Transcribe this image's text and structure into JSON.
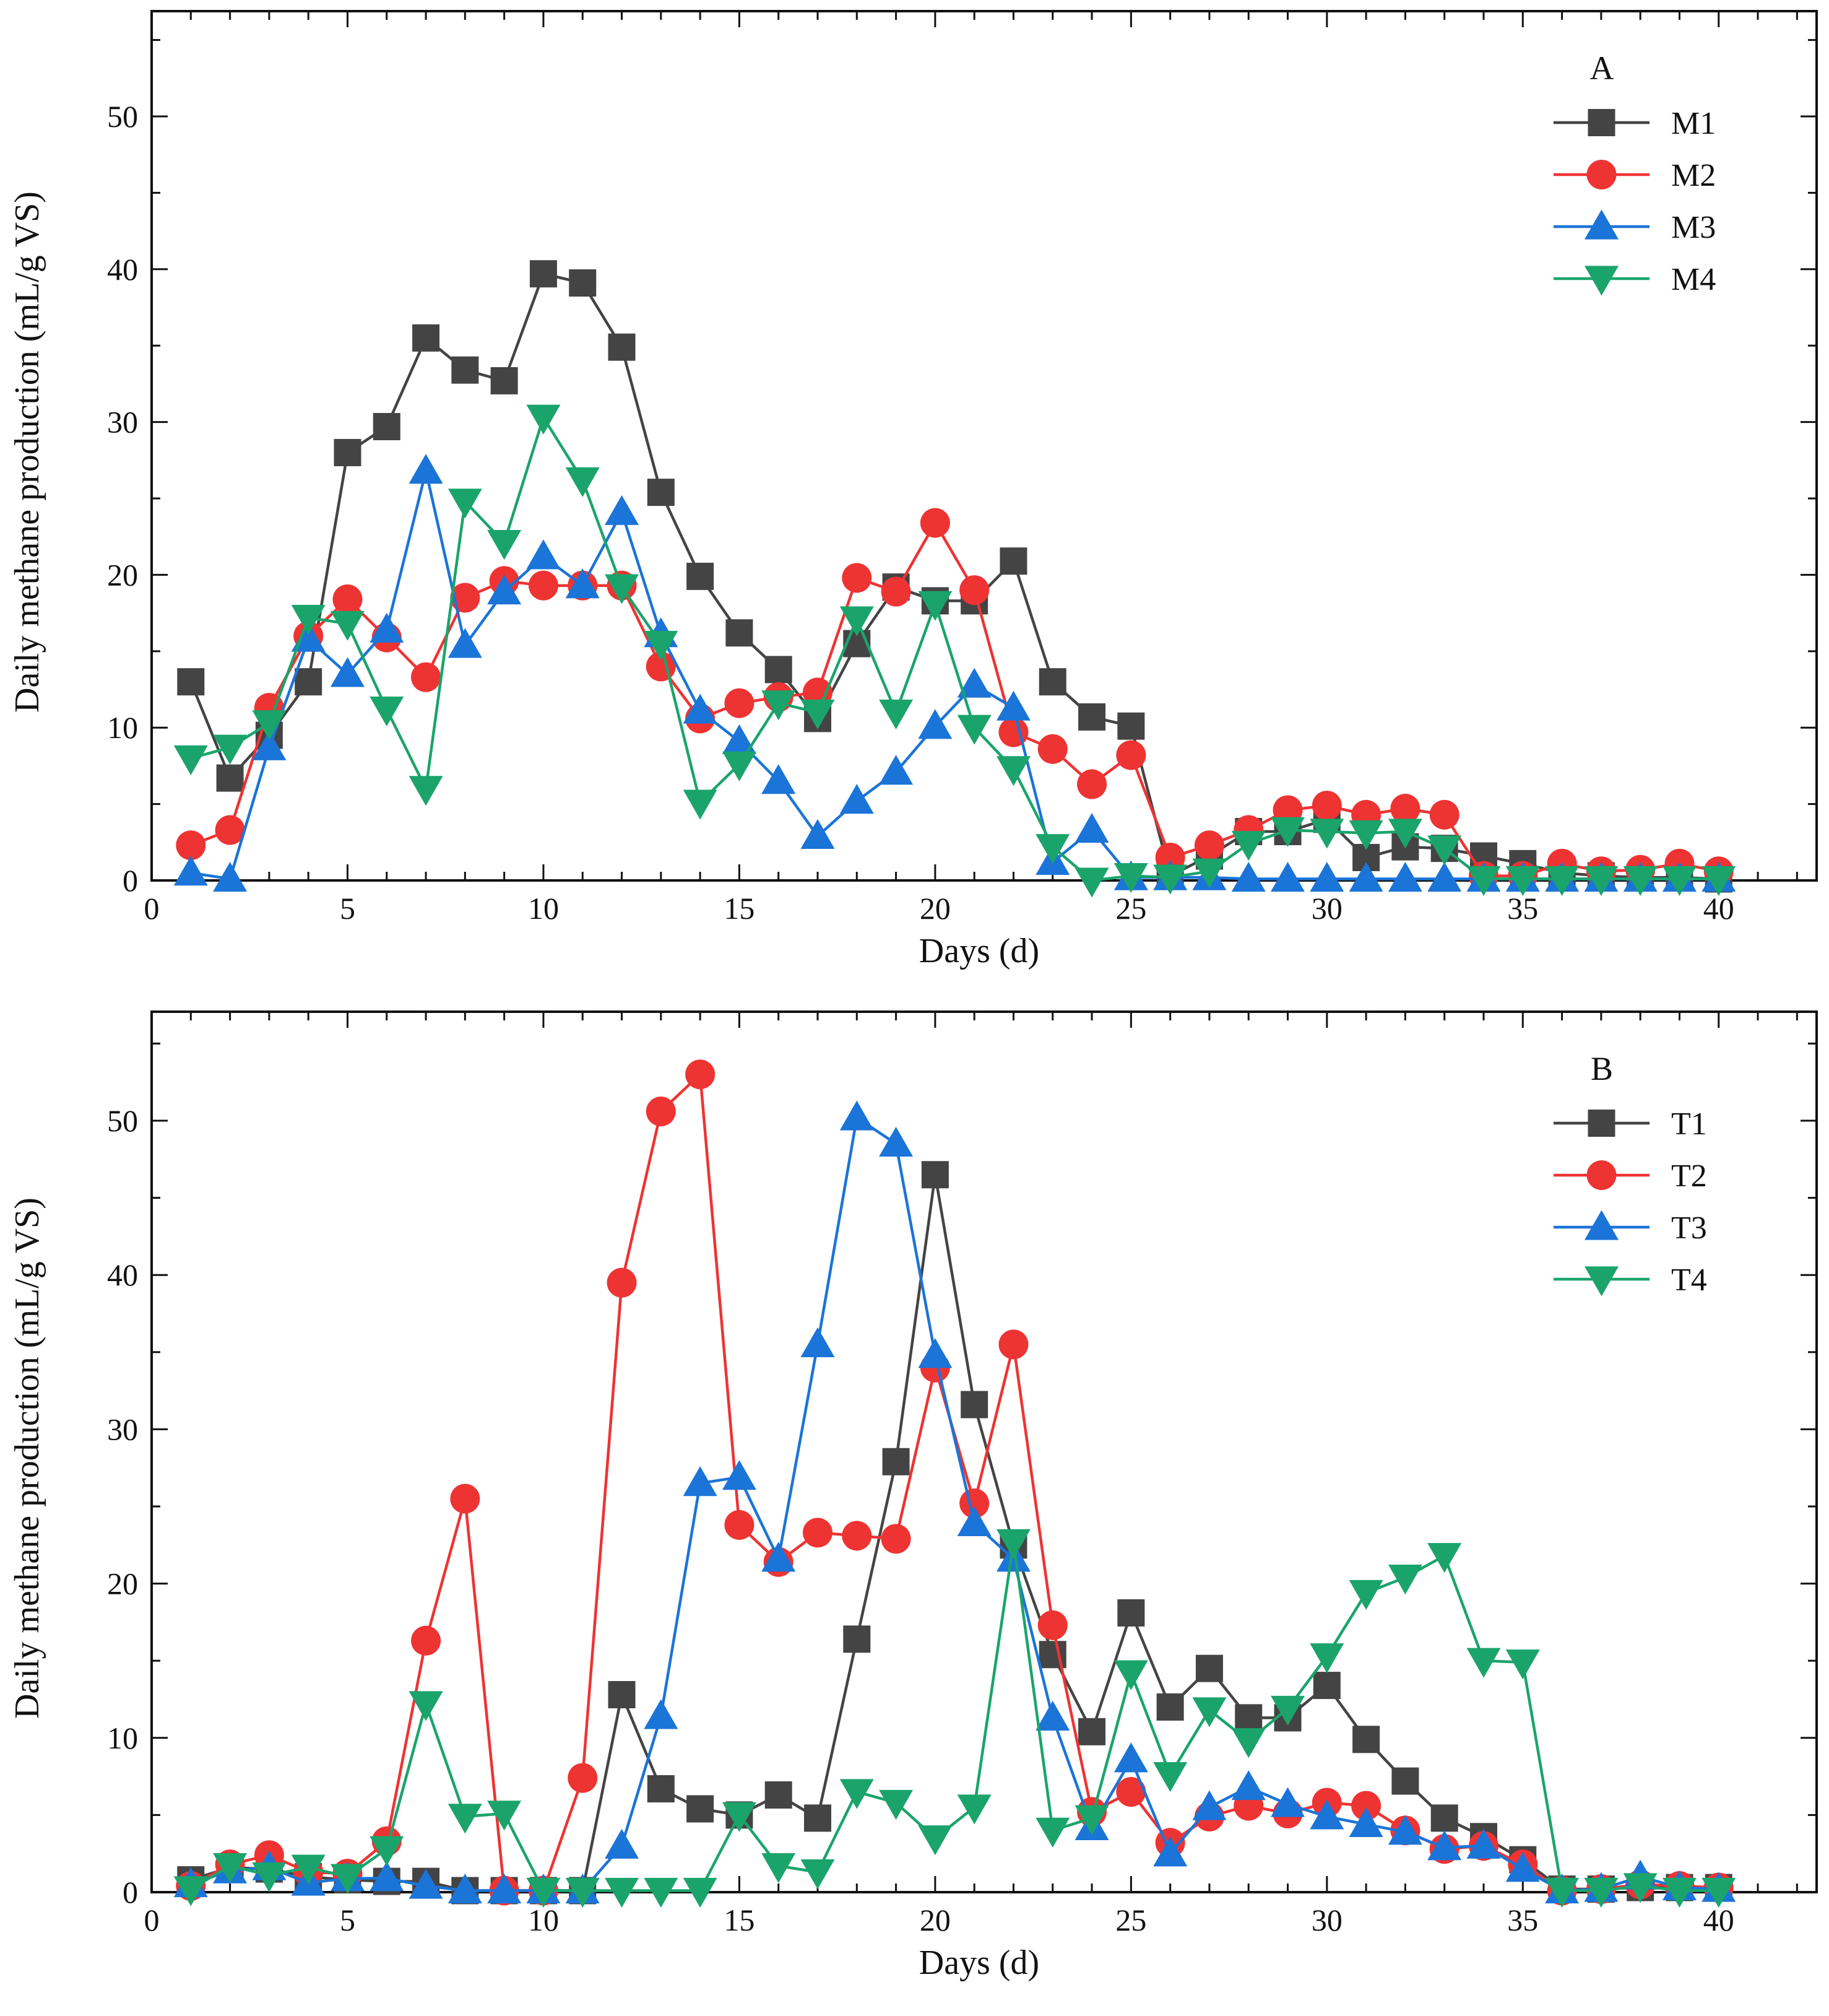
{
  "chart_data": [
    {
      "type": "line",
      "panel_label": "A",
      "xlabel": "Days (d)",
      "ylabel": "Daily methane production (mL/g VS)",
      "xlim": [
        0,
        42.5
      ],
      "ylim": [
        0,
        50
      ],
      "xticks": [
        0,
        5,
        10,
        15,
        20,
        25,
        30,
        35,
        40
      ],
      "yticks": [
        0,
        10,
        20,
        30,
        40,
        50
      ],
      "grid": false,
      "legend_position": "top-right",
      "x": [
        1,
        2,
        3,
        4,
        5,
        6,
        7,
        8,
        9,
        10,
        11,
        12,
        13,
        14,
        15,
        16,
        17,
        18,
        19,
        20,
        21,
        22,
        23,
        24,
        25,
        26,
        27,
        28,
        29,
        30,
        31,
        32,
        33,
        34,
        35,
        36,
        37,
        38,
        39,
        40
      ],
      "series": [
        {
          "name": "M1",
          "color": "#444444",
          "marker": "square",
          "values": [
            13,
            6.7,
            9.5,
            13,
            28,
            29.7,
            35.5,
            33.4,
            32.7,
            39.7,
            39.1,
            34.9,
            25.4,
            19.9,
            16.2,
            13.8,
            10.6,
            15.5,
            19.2,
            18.3,
            18.3,
            20.9,
            13,
            10.7,
            10.1,
            0.3,
            1.6,
            3.2,
            3.2,
            4,
            1.5,
            2.2,
            2.1,
            1.6,
            1.1,
            0.5,
            0.3,
            0.2,
            0.2,
            0.1
          ]
        },
        {
          "name": "M2",
          "color": "#ee3333",
          "marker": "circle",
          "values": [
            2.3,
            3.3,
            11.3,
            16,
            18.4,
            15.9,
            13.3,
            18.5,
            19.6,
            19.3,
            19.3,
            19.3,
            14,
            10.6,
            11.6,
            12,
            12.3,
            19.8,
            18.9,
            23.4,
            19,
            9.7,
            8.6,
            6.3,
            8.2,
            1.5,
            2.3,
            3.3,
            4.6,
            4.9,
            4.3,
            4.7,
            4.3,
            0.3,
            0.3,
            1.1,
            0.6,
            0.7,
            1.1,
            0.6
          ]
        },
        {
          "name": "M3",
          "color": "#1b74d8",
          "marker": "triangle-up",
          "values": [
            0.5,
            0.1,
            8.7,
            15.8,
            13.5,
            16.4,
            26.8,
            15.4,
            18.9,
            21.2,
            19.3,
            24.1,
            16.1,
            11.1,
            9.1,
            6.5,
            2.9,
            5.2,
            7.1,
            10.1,
            12.8,
            11.3,
            1.2,
            3.3,
            0.2,
            0.2,
            0.2,
            0.1,
            0.1,
            0.1,
            0.1,
            0.1,
            0.1,
            0.1,
            0.1,
            0.1,
            0.1,
            0.1,
            0.1,
            0.1
          ]
        },
        {
          "name": "M4",
          "color": "#1aa46b",
          "marker": "triangle-down",
          "values": [
            8,
            8.7,
            10.3,
            17.2,
            16.8,
            11.2,
            6,
            24.8,
            22.1,
            30.3,
            26.2,
            19.2,
            15.5,
            5.1,
            7.6,
            11.6,
            11,
            17.1,
            11,
            18.1,
            10,
            7.3,
            2.2,
            0,
            0.3,
            0.2,
            0.6,
            2.4,
            3.3,
            3.2,
            3.1,
            3.2,
            2.1,
            0.1,
            0.1,
            0.1,
            0.1,
            0.1,
            0.1,
            0.1
          ]
        }
      ]
    },
    {
      "type": "line",
      "panel_label": "B",
      "xlabel": "Days (d)",
      "ylabel": "Daily methane production (mL/g VS)",
      "xlim": [
        0,
        42.5
      ],
      "ylim": [
        0,
        50
      ],
      "xticks": [
        0,
        5,
        10,
        15,
        20,
        25,
        30,
        35,
        40
      ],
      "yticks": [
        0,
        10,
        20,
        30,
        40,
        50
      ],
      "grid": false,
      "legend_position": "top-right",
      "x": [
        1,
        2,
        3,
        4,
        5,
        6,
        7,
        8,
        9,
        10,
        11,
        12,
        13,
        14,
        15,
        16,
        17,
        18,
        19,
        20,
        21,
        22,
        23,
        24,
        25,
        26,
        27,
        28,
        29,
        30,
        31,
        32,
        33,
        34,
        35,
        36,
        37,
        38,
        39,
        40
      ],
      "series": [
        {
          "name": "T1",
          "color": "#444444",
          "marker": "square",
          "values": [
            0.8,
            1.6,
            1.5,
            1,
            0.8,
            0.7,
            0.7,
            0.1,
            0.1,
            0.1,
            0.1,
            12.8,
            6.7,
            5.4,
            5,
            6.3,
            4.8,
            16.4,
            27.9,
            46.5,
            31.6,
            22.5,
            15.4,
            10.4,
            18.1,
            12,
            14.5,
            11.3,
            11.3,
            13.4,
            9.9,
            7.2,
            4.8,
            3.6,
            2.1,
            0.2,
            0.2,
            0.3,
            0.3,
            0.3
          ]
        },
        {
          "name": "T2",
          "color": "#ee3333",
          "marker": "circle",
          "values": [
            0.4,
            1.8,
            2.4,
            1.3,
            1.2,
            3.3,
            16.3,
            25.5,
            0.1,
            0.1,
            7.4,
            39.5,
            50.6,
            53,
            23.8,
            21.4,
            23.3,
            23.1,
            22.9,
            34,
            25.2,
            35.5,
            17.3,
            5.2,
            6.5,
            3.2,
            4.9,
            5.6,
            5.1,
            5.8,
            5.6,
            4,
            2.8,
            3,
            1.8,
            0.1,
            0.2,
            0.5,
            0.4,
            0.3
          ]
        },
        {
          "name": "T3",
          "color": "#1b74d8",
          "marker": "triangle-up",
          "values": [
            0.5,
            1.4,
            1.6,
            0.6,
            0.9,
            0.9,
            0.4,
            0.1,
            0.1,
            0.1,
            0.1,
            3,
            11.4,
            26.5,
            26.9,
            21.6,
            35.5,
            50.2,
            48.5,
            34.8,
            23.9,
            21.6,
            11.3,
            4.2,
            8.6,
            2.5,
            5.5,
            6.8,
            5.7,
            4.9,
            4.4,
            3.9,
            2.9,
            3,
            1.5,
            0.1,
            0.2,
            1,
            0.3,
            0.2
          ]
        },
        {
          "name": "T4",
          "color": "#1aa46b",
          "marker": "triangle-down",
          "values": [
            0.2,
            1.7,
            1.1,
            1.6,
            1,
            2.8,
            12.2,
            4.9,
            5.1,
            0.1,
            0.1,
            0.1,
            0.1,
            0.1,
            5,
            1.7,
            1.3,
            6.5,
            5.8,
            3.5,
            5.5,
            22.7,
            4,
            4.8,
            14.2,
            7.6,
            11.8,
            9.8,
            11.9,
            15.3,
            19.4,
            20.4,
            21.8,
            15,
            14.9,
            0.1,
            0.1,
            0.4,
            0.1,
            0.1
          ]
        }
      ]
    }
  ]
}
